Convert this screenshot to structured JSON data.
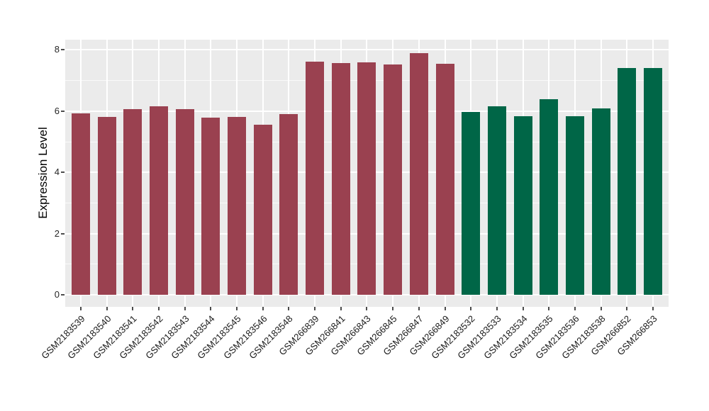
{
  "chart_data": {
    "type": "bar",
    "title": "",
    "xlabel": "",
    "ylabel": "Expression Level",
    "ylim": [
      0,
      8.3
    ],
    "yticks": [
      0,
      2,
      4,
      6,
      8
    ],
    "yminorticks": [
      1,
      3,
      5,
      7
    ],
    "grid": "on",
    "legend": "none",
    "figure_background": "#FFFFFF",
    "panel_background": "#EBEBEB",
    "grid_color": "#FFFFFF",
    "axis_text_color": "#262626",
    "group_colors": {
      "left_group": "#9A4150",
      "right_group": "#006647"
    },
    "bars": [
      {
        "label": "GSM2183539",
        "value": 5.92,
        "color": "#9A4150"
      },
      {
        "label": "GSM2183540",
        "value": 5.81,
        "color": "#9A4150"
      },
      {
        "label": "GSM2183541",
        "value": 6.06,
        "color": "#9A4150"
      },
      {
        "label": "GSM2183542",
        "value": 6.16,
        "color": "#9A4150"
      },
      {
        "label": "GSM2183543",
        "value": 6.07,
        "color": "#9A4150"
      },
      {
        "label": "GSM2183544",
        "value": 5.79,
        "color": "#9A4150"
      },
      {
        "label": "GSM2183545",
        "value": 5.82,
        "color": "#9A4150"
      },
      {
        "label": "GSM2183546",
        "value": 5.56,
        "color": "#9A4150"
      },
      {
        "label": "GSM2183548",
        "value": 5.9,
        "color": "#9A4150"
      },
      {
        "label": "GSM266839",
        "value": 7.62,
        "color": "#9A4150"
      },
      {
        "label": "GSM266841",
        "value": 7.56,
        "color": "#9A4150"
      },
      {
        "label": "GSM266843",
        "value": 7.6,
        "color": "#9A4150"
      },
      {
        "label": "GSM266845",
        "value": 7.53,
        "color": "#9A4150"
      },
      {
        "label": "GSM266847",
        "value": 7.9,
        "color": "#9A4150"
      },
      {
        "label": "GSM266849",
        "value": 7.54,
        "color": "#9A4150"
      },
      {
        "label": "GSM2183532",
        "value": 5.98,
        "color": "#006647"
      },
      {
        "label": "GSM2183533",
        "value": 6.16,
        "color": "#006647"
      },
      {
        "label": "GSM2183534",
        "value": 5.83,
        "color": "#006647"
      },
      {
        "label": "GSM2183535",
        "value": 6.4,
        "color": "#006647"
      },
      {
        "label": "GSM2183536",
        "value": 5.83,
        "color": "#006647"
      },
      {
        "label": "GSM2183538",
        "value": 6.09,
        "color": "#006647"
      },
      {
        "label": "GSM266852",
        "value": 7.41,
        "color": "#006647"
      },
      {
        "label": "GSM266853",
        "value": 7.41,
        "color": "#006647"
      }
    ]
  }
}
